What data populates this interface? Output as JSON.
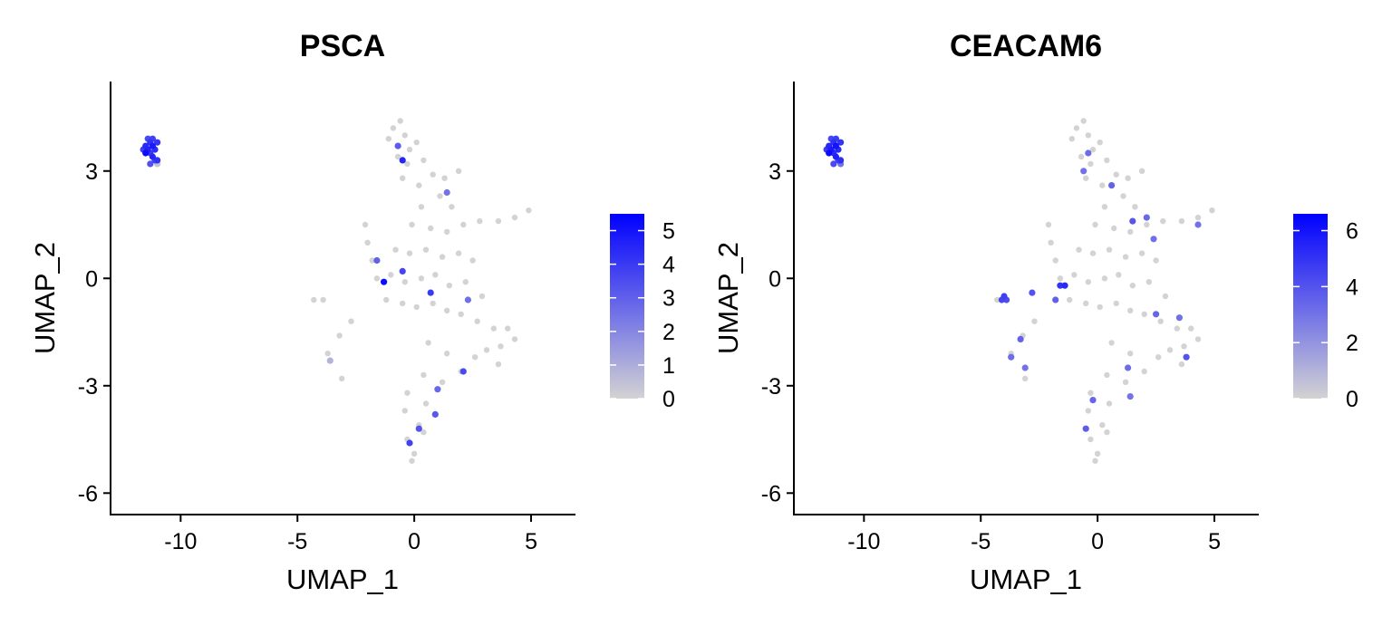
{
  "figure": {
    "background": "#ffffff",
    "color_low": "#d3d3d3",
    "color_high": "#0000ff"
  },
  "chart_data": [
    {
      "type": "scatter",
      "title": "PSCA",
      "xlabel": "UMAP_1",
      "ylabel": "UMAP_2",
      "xlim": [
        -13,
        6.9
      ],
      "ylim": [
        -6.6,
        5.5
      ],
      "xticks": [
        -10,
        -5,
        0,
        5
      ],
      "yticks": [
        -6,
        -3,
        0,
        3
      ],
      "xtick_labels": [
        "-10",
        "-5",
        "0",
        "5"
      ],
      "ytick_labels": [
        "-6",
        "-3",
        "0",
        "3"
      ],
      "grid": false,
      "color_scale": {
        "min": 0,
        "max": 5.5,
        "ticks": [
          0,
          1,
          2,
          3,
          4,
          5
        ],
        "tick_labels": [
          "0",
          "1",
          "2",
          "3",
          "4",
          "5"
        ],
        "low": "#d3d3d3",
        "high": "#0000ff"
      },
      "points": [
        {
          "x": -11.5,
          "y": 3.7,
          "v": 4.4
        },
        {
          "x": -11.4,
          "y": 3.6,
          "v": 4.6
        },
        {
          "x": -11.3,
          "y": 3.8,
          "v": 4.2
        },
        {
          "x": -11.2,
          "y": 3.7,
          "v": 4.8
        },
        {
          "x": -11.1,
          "y": 3.6,
          "v": 4.3
        },
        {
          "x": -11.0,
          "y": 3.8,
          "v": 4.1
        },
        {
          "x": -11.6,
          "y": 3.6,
          "v": 3.9
        },
        {
          "x": -11.3,
          "y": 3.5,
          "v": 4.0
        },
        {
          "x": -11.2,
          "y": 3.4,
          "v": 4.5
        },
        {
          "x": -11.1,
          "y": 3.3,
          "v": 3.7
        },
        {
          "x": -11.3,
          "y": 3.2,
          "v": 3.4
        },
        {
          "x": -11.0,
          "y": 3.3,
          "v": 4.2
        },
        {
          "x": -11.4,
          "y": 3.9,
          "v": 3.6
        },
        {
          "x": -11.0,
          "y": 3.2,
          "v": 0.5
        },
        {
          "x": -11.5,
          "y": 3.5,
          "v": 5.2
        },
        {
          "x": -11.2,
          "y": 3.9,
          "v": 3.8
        },
        {
          "x": -1.1,
          "y": 3.9,
          "v": 0
        },
        {
          "x": -0.9,
          "y": 4.2,
          "v": 0
        },
        {
          "x": -0.6,
          "y": 4.4,
          "v": 0
        },
        {
          "x": -0.4,
          "y": 4.0,
          "v": 0
        },
        {
          "x": -0.2,
          "y": 3.6,
          "v": 0
        },
        {
          "x": 0.1,
          "y": 3.8,
          "v": 0
        },
        {
          "x": -0.7,
          "y": 3.4,
          "v": 0
        },
        {
          "x": -0.3,
          "y": 3.2,
          "v": 0
        },
        {
          "x": 0.4,
          "y": 3.3,
          "v": 0
        },
        {
          "x": -0.5,
          "y": 2.8,
          "v": 0
        },
        {
          "x": 0.2,
          "y": 2.6,
          "v": 0
        },
        {
          "x": 0.8,
          "y": 2.9,
          "v": 0
        },
        {
          "x": 1.3,
          "y": 2.8,
          "v": 0
        },
        {
          "x": 1.9,
          "y": 3.0,
          "v": 0
        },
        {
          "x": 1.1,
          "y": 2.3,
          "v": 0
        },
        {
          "x": 1.6,
          "y": 2.0,
          "v": 0
        },
        {
          "x": 0.3,
          "y": 2.0,
          "v": 0
        },
        {
          "x": -0.1,
          "y": 1.5,
          "v": 0
        },
        {
          "x": 0.7,
          "y": 1.4,
          "v": 0
        },
        {
          "x": 1.4,
          "y": 1.3,
          "v": 0
        },
        {
          "x": 2.1,
          "y": 1.5,
          "v": 0
        },
        {
          "x": 2.8,
          "y": 1.6,
          "v": 0
        },
        {
          "x": 3.6,
          "y": 1.6,
          "v": 0
        },
        {
          "x": 4.3,
          "y": 1.7,
          "v": 0
        },
        {
          "x": 4.9,
          "y": 1.9,
          "v": 0
        },
        {
          "x": -2.1,
          "y": 1.5,
          "v": 0
        },
        {
          "x": -2.0,
          "y": 1.0,
          "v": 0
        },
        {
          "x": -1.8,
          "y": 0.5,
          "v": 0
        },
        {
          "x": -0.8,
          "y": 0.8,
          "v": 0
        },
        {
          "x": -0.2,
          "y": 0.7,
          "v": 0
        },
        {
          "x": 0.5,
          "y": 0.8,
          "v": 0
        },
        {
          "x": 1.2,
          "y": 0.6,
          "v": 0
        },
        {
          "x": 1.9,
          "y": 0.7,
          "v": 0
        },
        {
          "x": 2.5,
          "y": 0.5,
          "v": 0
        },
        {
          "x": -1.6,
          "y": 0.0,
          "v": 0
        },
        {
          "x": -1.0,
          "y": 0.1,
          "v": 0
        },
        {
          "x": -0.4,
          "y": -0.1,
          "v": 0
        },
        {
          "x": 0.3,
          "y": 0.0,
          "v": 0
        },
        {
          "x": 0.9,
          "y": 0.1,
          "v": 0
        },
        {
          "x": 1.5,
          "y": -0.2,
          "v": 0
        },
        {
          "x": 2.2,
          "y": -0.1,
          "v": 0
        },
        {
          "x": 2.9,
          "y": -0.5,
          "v": 0
        },
        {
          "x": -1.2,
          "y": -0.6,
          "v": 0
        },
        {
          "x": -0.5,
          "y": -0.7,
          "v": 0
        },
        {
          "x": 0.1,
          "y": -0.8,
          "v": 0
        },
        {
          "x": 0.8,
          "y": -0.7,
          "v": 0
        },
        {
          "x": 1.4,
          "y": -0.9,
          "v": 0
        },
        {
          "x": 2.0,
          "y": -1.0,
          "v": 0
        },
        {
          "x": 2.7,
          "y": -1.2,
          "v": 0
        },
        {
          "x": 3.4,
          "y": -1.4,
          "v": 0
        },
        {
          "x": 4.0,
          "y": -1.4,
          "v": 0
        },
        {
          "x": 4.3,
          "y": -1.7,
          "v": 0
        },
        {
          "x": 3.7,
          "y": -1.9,
          "v": 0
        },
        {
          "x": 3.1,
          "y": -2.0,
          "v": 0
        },
        {
          "x": 3.6,
          "y": -2.4,
          "v": 0
        },
        {
          "x": 2.6,
          "y": -2.2,
          "v": 0
        },
        {
          "x": -4.3,
          "y": -0.6,
          "v": 0
        },
        {
          "x": -3.9,
          "y": -0.6,
          "v": 0
        },
        {
          "x": -2.7,
          "y": -1.2,
          "v": 0
        },
        {
          "x": -3.2,
          "y": -1.6,
          "v": 0
        },
        {
          "x": -3.7,
          "y": -2.1,
          "v": 0
        },
        {
          "x": -3.1,
          "y": -2.8,
          "v": 0
        },
        {
          "x": -3.6,
          "y": -2.3,
          "v": 0.8
        },
        {
          "x": 0.6,
          "y": -1.8,
          "v": 0
        },
        {
          "x": 1.4,
          "y": -2.1,
          "v": 0
        },
        {
          "x": 2.0,
          "y": -2.6,
          "v": 0
        },
        {
          "x": 1.2,
          "y": -2.9,
          "v": 0
        },
        {
          "x": 0.4,
          "y": -2.7,
          "v": 0
        },
        {
          "x": -0.3,
          "y": -3.2,
          "v": 0
        },
        {
          "x": 0.5,
          "y": -3.5,
          "v": 0
        },
        {
          "x": -0.4,
          "y": -3.7,
          "v": 0
        },
        {
          "x": 0.2,
          "y": -4.1,
          "v": 0
        },
        {
          "x": -0.3,
          "y": -4.5,
          "v": 0
        },
        {
          "x": 0.0,
          "y": -4.9,
          "v": 0
        },
        {
          "x": -0.1,
          "y": -5.1,
          "v": 0
        },
        {
          "x": 0.4,
          "y": -4.3,
          "v": 0
        },
        {
          "x": -0.7,
          "y": 3.7,
          "v": 3.1
        },
        {
          "x": -0.5,
          "y": 3.3,
          "v": 4.5
        },
        {
          "x": -1.3,
          "y": -0.1,
          "v": 5.2
        },
        {
          "x": -0.5,
          "y": 0.2,
          "v": 3.7
        },
        {
          "x": 0.7,
          "y": -0.4,
          "v": 4.0
        },
        {
          "x": 2.1,
          "y": -2.6,
          "v": 3.6
        },
        {
          "x": 0.9,
          "y": -3.8,
          "v": 3.2
        },
        {
          "x": 0.2,
          "y": -4.2,
          "v": 3.3
        },
        {
          "x": -0.2,
          "y": -4.6,
          "v": 3.8
        },
        {
          "x": 1.0,
          "y": -3.1,
          "v": 2.8
        },
        {
          "x": -1.6,
          "y": 0.5,
          "v": 3.0
        },
        {
          "x": 2.3,
          "y": -0.6,
          "v": 2.6
        },
        {
          "x": 1.4,
          "y": 2.4,
          "v": 2.5
        }
      ],
      "legend": "right"
    },
    {
      "type": "scatter",
      "title": "CEACAM6",
      "xlabel": "UMAP_1",
      "ylabel": "UMAP_2",
      "xlim": [
        -13,
        6.9
      ],
      "ylim": [
        -6.6,
        5.5
      ],
      "xticks": [
        -10,
        -5,
        0,
        5
      ],
      "yticks": [
        -6,
        -3,
        0,
        3
      ],
      "xtick_labels": [
        "-10",
        "-5",
        "0",
        "5"
      ],
      "ytick_labels": [
        "-6",
        "-3",
        "0",
        "3"
      ],
      "grid": false,
      "color_scale": {
        "min": 0,
        "max": 6.6,
        "ticks": [
          0,
          2,
          4,
          6
        ],
        "tick_labels": [
          "0",
          "2",
          "4",
          "6"
        ],
        "low": "#d3d3d3",
        "high": "#0000ff"
      },
      "points": [
        {
          "x": -11.5,
          "y": 3.7,
          "v": 5.4
        },
        {
          "x": -11.4,
          "y": 3.6,
          "v": 5.8
        },
        {
          "x": -11.3,
          "y": 3.8,
          "v": 5.1
        },
        {
          "x": -11.2,
          "y": 3.7,
          "v": 6.0
        },
        {
          "x": -11.1,
          "y": 3.6,
          "v": 5.3
        },
        {
          "x": -11.0,
          "y": 3.8,
          "v": 5.0
        },
        {
          "x": -11.6,
          "y": 3.6,
          "v": 4.8
        },
        {
          "x": -11.3,
          "y": 3.5,
          "v": 5.2
        },
        {
          "x": -11.2,
          "y": 3.4,
          "v": 5.6
        },
        {
          "x": -11.1,
          "y": 3.3,
          "v": 4.6
        },
        {
          "x": -11.3,
          "y": 3.2,
          "v": 4.3
        },
        {
          "x": -11.0,
          "y": 3.3,
          "v": 5.1
        },
        {
          "x": -11.4,
          "y": 3.9,
          "v": 4.4
        },
        {
          "x": -11.0,
          "y": 3.2,
          "v": 3.0
        },
        {
          "x": -11.5,
          "y": 3.5,
          "v": 6.3
        },
        {
          "x": -11.2,
          "y": 3.9,
          "v": 4.7
        },
        {
          "x": -1.1,
          "y": 3.9,
          "v": 0
        },
        {
          "x": -0.9,
          "y": 4.2,
          "v": 0
        },
        {
          "x": -0.6,
          "y": 4.4,
          "v": 0
        },
        {
          "x": -0.4,
          "y": 4.0,
          "v": 0
        },
        {
          "x": -0.2,
          "y": 3.6,
          "v": 0
        },
        {
          "x": 0.1,
          "y": 3.8,
          "v": 0
        },
        {
          "x": -0.7,
          "y": 3.4,
          "v": 0
        },
        {
          "x": -0.3,
          "y": 3.2,
          "v": 0
        },
        {
          "x": 0.4,
          "y": 3.3,
          "v": 0
        },
        {
          "x": -0.5,
          "y": 2.8,
          "v": 0
        },
        {
          "x": 0.2,
          "y": 2.6,
          "v": 0
        },
        {
          "x": 0.8,
          "y": 2.9,
          "v": 0
        },
        {
          "x": 1.3,
          "y": 2.8,
          "v": 0
        },
        {
          "x": 1.9,
          "y": 3.0,
          "v": 0
        },
        {
          "x": 1.1,
          "y": 2.3,
          "v": 0
        },
        {
          "x": 1.6,
          "y": 2.0,
          "v": 0
        },
        {
          "x": 0.3,
          "y": 2.0,
          "v": 0
        },
        {
          "x": -0.1,
          "y": 1.5,
          "v": 0
        },
        {
          "x": 0.7,
          "y": 1.4,
          "v": 0
        },
        {
          "x": 1.4,
          "y": 1.3,
          "v": 0
        },
        {
          "x": 2.1,
          "y": 1.5,
          "v": 0
        },
        {
          "x": 2.8,
          "y": 1.6,
          "v": 0
        },
        {
          "x": 3.6,
          "y": 1.6,
          "v": 0
        },
        {
          "x": 4.3,
          "y": 1.7,
          "v": 0
        },
        {
          "x": 4.9,
          "y": 1.9,
          "v": 0
        },
        {
          "x": -2.1,
          "y": 1.5,
          "v": 0
        },
        {
          "x": -2.0,
          "y": 1.0,
          "v": 0
        },
        {
          "x": -1.8,
          "y": 0.5,
          "v": 0
        },
        {
          "x": -0.8,
          "y": 0.8,
          "v": 0
        },
        {
          "x": -0.2,
          "y": 0.7,
          "v": 0
        },
        {
          "x": 0.5,
          "y": 0.8,
          "v": 0
        },
        {
          "x": 1.2,
          "y": 0.6,
          "v": 0
        },
        {
          "x": 1.9,
          "y": 0.7,
          "v": 0
        },
        {
          "x": 2.5,
          "y": 0.5,
          "v": 0
        },
        {
          "x": -1.6,
          "y": 0.0,
          "v": 0
        },
        {
          "x": -1.0,
          "y": 0.1,
          "v": 0
        },
        {
          "x": -0.4,
          "y": -0.1,
          "v": 0
        },
        {
          "x": 0.3,
          "y": 0.0,
          "v": 0
        },
        {
          "x": 0.9,
          "y": 0.1,
          "v": 0
        },
        {
          "x": 1.5,
          "y": -0.2,
          "v": 0
        },
        {
          "x": 2.2,
          "y": -0.1,
          "v": 0
        },
        {
          "x": 2.9,
          "y": -0.5,
          "v": 0
        },
        {
          "x": -1.2,
          "y": -0.6,
          "v": 0
        },
        {
          "x": -0.5,
          "y": -0.7,
          "v": 0
        },
        {
          "x": 0.1,
          "y": -0.8,
          "v": 0
        },
        {
          "x": 0.8,
          "y": -0.7,
          "v": 0
        },
        {
          "x": 1.4,
          "y": -0.9,
          "v": 0
        },
        {
          "x": 2.0,
          "y": -1.0,
          "v": 0
        },
        {
          "x": 2.7,
          "y": -1.2,
          "v": 0
        },
        {
          "x": 3.4,
          "y": -1.4,
          "v": 0
        },
        {
          "x": 4.0,
          "y": -1.4,
          "v": 0
        },
        {
          "x": 4.3,
          "y": -1.7,
          "v": 0
        },
        {
          "x": 3.7,
          "y": -1.9,
          "v": 0
        },
        {
          "x": 3.1,
          "y": -2.0,
          "v": 0
        },
        {
          "x": 3.6,
          "y": -2.4,
          "v": 0
        },
        {
          "x": 2.6,
          "y": -2.2,
          "v": 0
        },
        {
          "x": -4.3,
          "y": -0.6,
          "v": 0
        },
        {
          "x": -3.9,
          "y": -0.6,
          "v": 0
        },
        {
          "x": -2.7,
          "y": -1.2,
          "v": 0
        },
        {
          "x": -3.2,
          "y": -1.6,
          "v": 0
        },
        {
          "x": -3.7,
          "y": -2.1,
          "v": 0
        },
        {
          "x": -3.1,
          "y": -2.8,
          "v": 0
        },
        {
          "x": 0.6,
          "y": -1.8,
          "v": 0
        },
        {
          "x": 1.4,
          "y": -2.1,
          "v": 0
        },
        {
          "x": 2.0,
          "y": -2.6,
          "v": 0
        },
        {
          "x": 1.2,
          "y": -2.9,
          "v": 0
        },
        {
          "x": 0.4,
          "y": -2.7,
          "v": 0
        },
        {
          "x": -0.3,
          "y": -3.2,
          "v": 0
        },
        {
          "x": 0.5,
          "y": -3.5,
          "v": 0
        },
        {
          "x": -0.4,
          "y": -3.7,
          "v": 0
        },
        {
          "x": 0.2,
          "y": -4.1,
          "v": 0
        },
        {
          "x": -0.3,
          "y": -4.5,
          "v": 0
        },
        {
          "x": 0.0,
          "y": -4.9,
          "v": 0
        },
        {
          "x": -0.1,
          "y": -5.1,
          "v": 0
        },
        {
          "x": 0.4,
          "y": -4.3,
          "v": 0
        },
        {
          "x": -4.1,
          "y": -0.6,
          "v": 4.4
        },
        {
          "x": -4.0,
          "y": -0.5,
          "v": 4.6
        },
        {
          "x": -3.9,
          "y": -0.6,
          "v": 4.2
        },
        {
          "x": -3.3,
          "y": -1.7,
          "v": 3.5
        },
        {
          "x": -3.7,
          "y": -2.2,
          "v": 3.2
        },
        {
          "x": -3.1,
          "y": -2.5,
          "v": 3.0
        },
        {
          "x": -2.8,
          "y": -0.4,
          "v": 4.0
        },
        {
          "x": -1.6,
          "y": -0.2,
          "v": 5.0
        },
        {
          "x": -1.4,
          "y": -0.2,
          "v": 5.3
        },
        {
          "x": -1.8,
          "y": -0.6,
          "v": 3.6
        },
        {
          "x": -0.2,
          "y": -3.4,
          "v": 3.4
        },
        {
          "x": -0.5,
          "y": -4.2,
          "v": 3.7
        },
        {
          "x": -0.4,
          "y": 3.5,
          "v": 3.2
        },
        {
          "x": -0.6,
          "y": 3.0,
          "v": 3.0
        },
        {
          "x": 0.6,
          "y": 2.6,
          "v": 3.5
        },
        {
          "x": 1.5,
          "y": 1.6,
          "v": 3.9
        },
        {
          "x": 2.1,
          "y": 1.7,
          "v": 3.3
        },
        {
          "x": 2.4,
          "y": 1.1,
          "v": 3.1
        },
        {
          "x": 4.3,
          "y": 1.5,
          "v": 3.0
        },
        {
          "x": 2.5,
          "y": -1.0,
          "v": 3.4
        },
        {
          "x": 3.8,
          "y": -2.2,
          "v": 4.0
        },
        {
          "x": 1.3,
          "y": -2.5,
          "v": 3.2
        },
        {
          "x": 3.5,
          "y": -1.1,
          "v": 3.1
        },
        {
          "x": 1.4,
          "y": -3.3,
          "v": 3.0
        }
      ],
      "legend": "right"
    }
  ]
}
